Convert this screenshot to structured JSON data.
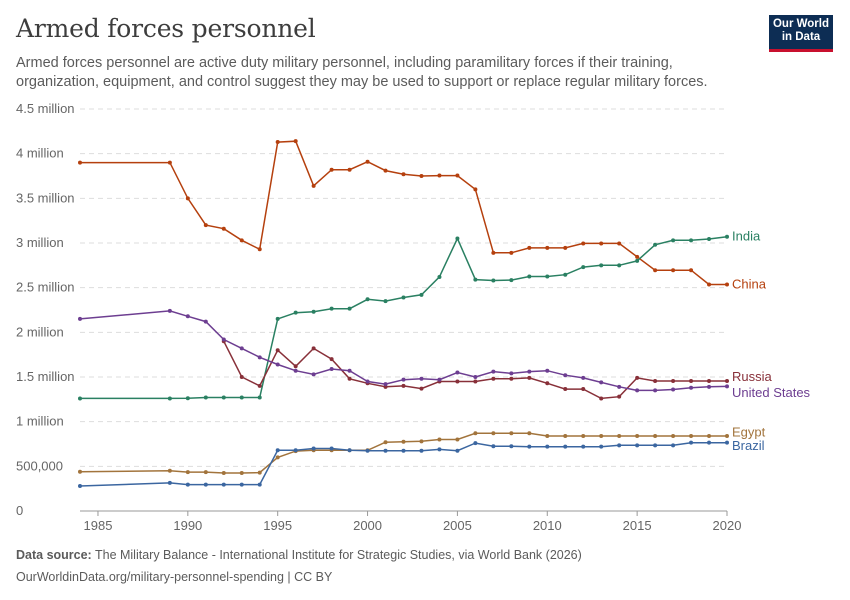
{
  "header": {
    "title": "Armed forces personnel",
    "subtitle": "Armed forces personnel are active duty military personnel, including paramilitary forces if their training, organization, equipment, and control suggest they may be used to support or replace regular military forces."
  },
  "logo": {
    "line1": "Our World",
    "line2": "in Data",
    "bg": "#0d2d54",
    "accent": "#c8102e"
  },
  "footer": {
    "source_label": "Data source:",
    "source_text": " The Military Balance - International Institute for Strategic Studies, via World Bank (2026)",
    "url": "OurWorldinData.org/military-personnel-spending | CC BY"
  },
  "chart_data": {
    "type": "line",
    "title": "Armed forces personnel",
    "xlabel": "",
    "ylabel": "",
    "xlim": [
      1984,
      2020
    ],
    "ylim": [
      0,
      4500000
    ],
    "x_ticks": [
      1985,
      1990,
      1995,
      2000,
      2005,
      2010,
      2015,
      2020
    ],
    "y_ticks": [
      {
        "value": 0,
        "label": "0"
      },
      {
        "value": 500000,
        "label": "500,000"
      },
      {
        "value": 1000000,
        "label": "1 million"
      },
      {
        "value": 1500000,
        "label": "1.5 million"
      },
      {
        "value": 2000000,
        "label": "2 million"
      },
      {
        "value": 2500000,
        "label": "2.5 million"
      },
      {
        "value": 3000000,
        "label": "3 million"
      },
      {
        "value": 3500000,
        "label": "3.5 million"
      },
      {
        "value": 4000000,
        "label": "4 million"
      },
      {
        "value": 4500000,
        "label": "4.5 million"
      }
    ],
    "grid": true,
    "legend": "inline-right",
    "x": [
      1984,
      1989,
      1990,
      1991,
      1992,
      1993,
      1994,
      1995,
      1996,
      1997,
      1998,
      1999,
      2000,
      2001,
      2002,
      2003,
      2004,
      2005,
      2006,
      2007,
      2008,
      2009,
      2010,
      2011,
      2012,
      2013,
      2014,
      2015,
      2016,
      2017,
      2018,
      2019,
      2020
    ],
    "series": [
      {
        "name": "China",
        "color": "#b5400e",
        "values": [
          3900000,
          3900000,
          3500000,
          3200000,
          3160000,
          3030000,
          2930000,
          4130000,
          4140000,
          3640000,
          3820000,
          3820000,
          3910000,
          3810000,
          3770000,
          3750000,
          3755000,
          3755000,
          3600000,
          2890000,
          2890000,
          2945000,
          2945000,
          2945000,
          2995000,
          2995000,
          2995000,
          2845000,
          2695000,
          2695000,
          2695000,
          2535000,
          2535000
        ]
      },
      {
        "name": "India",
        "color": "#2a8062",
        "values": [
          1260000,
          1260000,
          1262000,
          1270000,
          1270000,
          1270000,
          1270000,
          2150000,
          2220000,
          2230000,
          2265000,
          2265000,
          2370000,
          2350000,
          2390000,
          2420000,
          2620000,
          3050000,
          2590000,
          2580000,
          2585000,
          2625000,
          2625000,
          2645000,
          2730000,
          2750000,
          2750000,
          2800000,
          2980000,
          3030000,
          3030000,
          3045000,
          3070000
        ]
      },
      {
        "name": "Russia",
        "color": "#883039",
        "values": [
          null,
          null,
          null,
          null,
          1900000,
          1500000,
          1400000,
          1800000,
          1620000,
          1820000,
          1700000,
          1480000,
          1430000,
          1390000,
          1400000,
          1370000,
          1450000,
          1450000,
          1450000,
          1480000,
          1480000,
          1490000,
          1430000,
          1365000,
          1365000,
          1260000,
          1280000,
          1490000,
          1455000,
          1455000,
          1455000,
          1455000,
          1455000
        ]
      },
      {
        "name": "United States",
        "color": "#6d3e91",
        "values": [
          2150000,
          2240000,
          2180000,
          2120000,
          1920000,
          1820000,
          1720000,
          1640000,
          1570000,
          1530000,
          1590000,
          1570000,
          1450000,
          1420000,
          1470000,
          1480000,
          1470000,
          1550000,
          1500000,
          1560000,
          1540000,
          1560000,
          1570000,
          1520000,
          1490000,
          1440000,
          1390000,
          1350000,
          1350000,
          1360000,
          1380000,
          1390000,
          1395000
        ]
      },
      {
        "name": "Egypt",
        "color": "#a2743c",
        "values": [
          440000,
          450000,
          435000,
          435000,
          425000,
          425000,
          430000,
          600000,
          670000,
          680000,
          680000,
          680000,
          680000,
          770000,
          775000,
          780000,
          800000,
          800000,
          870000,
          870000,
          870000,
          870000,
          840000,
          840000,
          840000,
          840000,
          840000,
          840000,
          840000,
          840000,
          840000,
          840000,
          840000
        ]
      },
      {
        "name": "Brazil",
        "color": "#3b66a0",
        "values": [
          280000,
          315000,
          295000,
          295000,
          295000,
          295000,
          295000,
          680000,
          680000,
          700000,
          700000,
          680000,
          675000,
          675000,
          675000,
          675000,
          690000,
          675000,
          760000,
          725000,
          725000,
          720000,
          720000,
          720000,
          720000,
          720000,
          735000,
          735000,
          735000,
          735000,
          765000,
          765000,
          765000
        ]
      }
    ]
  }
}
